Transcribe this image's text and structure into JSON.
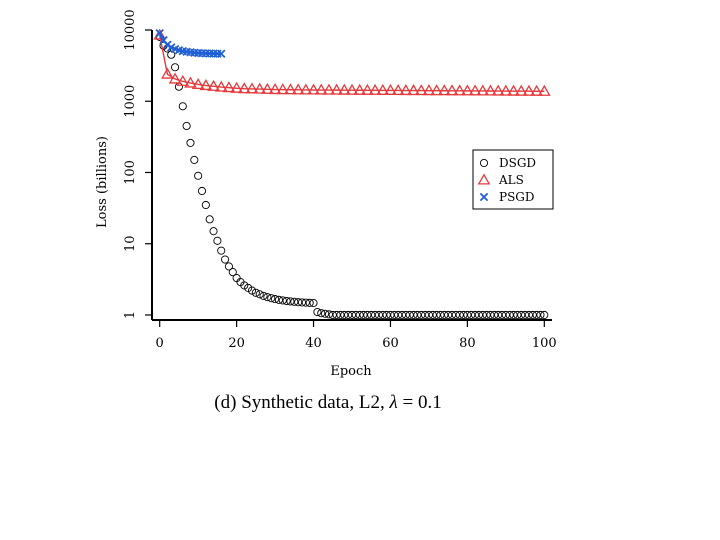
{
  "caption": {
    "prefix": "(d) Synthetic data, L2,",
    "lambda_symbol": "λ",
    "equals": "=",
    "lambda_value": "0.1"
  },
  "chart_data": {
    "type": "scatter",
    "title": "",
    "xlabel": "Epoch",
    "ylabel": "Loss (billions)",
    "yscale": "log",
    "xlim": [
      -2,
      102
    ],
    "ylim": [
      0.85,
      10000
    ],
    "xticks": [
      0,
      20,
      40,
      60,
      80,
      100
    ],
    "xtick_labels": [
      "0",
      "20",
      "40",
      "60",
      "80",
      "100"
    ],
    "yticks": [
      1,
      10,
      100,
      1000,
      10000
    ],
    "ytick_labels": [
      "1",
      "10",
      "100",
      "1000",
      "10000"
    ],
    "legend": {
      "position": "right",
      "entries": [
        "DSGD",
        "ALS",
        "PSGD"
      ]
    },
    "series": [
      {
        "name": "DSGD",
        "marker": "circle",
        "color": "#000000",
        "x": [
          0,
          1,
          2,
          3,
          4,
          5,
          6,
          7,
          8,
          9,
          10,
          11,
          12,
          13,
          14,
          15,
          16,
          17,
          18,
          19,
          20,
          21,
          22,
          23,
          24,
          25,
          26,
          27,
          28,
          29,
          30,
          31,
          32,
          33,
          34,
          35,
          36,
          37,
          38,
          39,
          40,
          41,
          42,
          43,
          44,
          45,
          46,
          47,
          48,
          49,
          50,
          51,
          52,
          53,
          54,
          55,
          56,
          57,
          58,
          59,
          60,
          61,
          62,
          63,
          64,
          65,
          66,
          67,
          68,
          69,
          70,
          71,
          72,
          73,
          74,
          75,
          76,
          77,
          78,
          79,
          80,
          81,
          82,
          83,
          84,
          85,
          86,
          87,
          88,
          89,
          90,
          91,
          92,
          93,
          94,
          95,
          96,
          97,
          98,
          99,
          100
        ],
        "y": [
          8000,
          6000,
          5500,
          4500,
          3000,
          1600,
          850,
          450,
          260,
          150,
          90,
          55,
          35,
          22,
          15,
          11,
          8,
          6,
          4.8,
          4,
          3.3,
          2.9,
          2.6,
          2.4,
          2.2,
          2.05,
          1.95,
          1.85,
          1.78,
          1.72,
          1.67,
          1.63,
          1.6,
          1.57,
          1.55,
          1.53,
          1.51,
          1.5,
          1.49,
          1.48,
          1.47,
          1.1,
          1.06,
          1.04,
          1.02,
          1,
          1,
          1,
          1,
          1,
          1,
          1,
          1,
          1,
          1,
          1,
          1,
          1,
          1,
          1,
          1,
          1,
          1,
          1,
          1,
          1,
          1,
          1,
          1,
          1,
          1,
          1,
          1,
          1,
          1,
          1,
          1,
          1,
          1,
          1,
          1,
          1,
          1,
          1,
          1,
          1,
          1,
          1,
          1,
          1,
          1,
          1,
          1,
          1,
          1,
          1,
          1,
          1,
          1,
          1,
          1
        ]
      },
      {
        "name": "ALS",
        "marker": "triangle",
        "color": "#e8393b",
        "x": [
          0,
          2,
          4,
          6,
          8,
          10,
          12,
          14,
          16,
          18,
          20,
          22,
          24,
          26,
          28,
          30,
          32,
          34,
          36,
          38,
          40,
          42,
          44,
          46,
          48,
          50,
          52,
          54,
          56,
          58,
          60,
          62,
          64,
          66,
          68,
          70,
          72,
          74,
          76,
          78,
          80,
          82,
          84,
          86,
          88,
          90,
          92,
          94,
          96,
          98,
          100
        ],
        "y": [
          8500,
          2400,
          2050,
          1900,
          1800,
          1720,
          1660,
          1620,
          1580,
          1550,
          1520,
          1500,
          1490,
          1480,
          1470,
          1460,
          1455,
          1450,
          1445,
          1440,
          1438,
          1436,
          1434,
          1432,
          1430,
          1428,
          1426,
          1424,
          1422,
          1420,
          1418,
          1416,
          1414,
          1412,
          1410,
          1408,
          1406,
          1404,
          1402,
          1400,
          1398,
          1396,
          1394,
          1392,
          1390,
          1388,
          1386,
          1384,
          1382,
          1380,
          1378
        ]
      },
      {
        "name": "PSGD",
        "marker": "x",
        "color": "#1f5fd6",
        "x": [
          0,
          1,
          2,
          3,
          4,
          5,
          6,
          7,
          8,
          9,
          10,
          11,
          12,
          13,
          14,
          15,
          16
        ],
        "y": [
          9000,
          7200,
          6200,
          5700,
          5400,
          5200,
          5050,
          4950,
          4870,
          4800,
          4750,
          4720,
          4700,
          4680,
          4660,
          4650,
          4640
        ]
      }
    ]
  }
}
